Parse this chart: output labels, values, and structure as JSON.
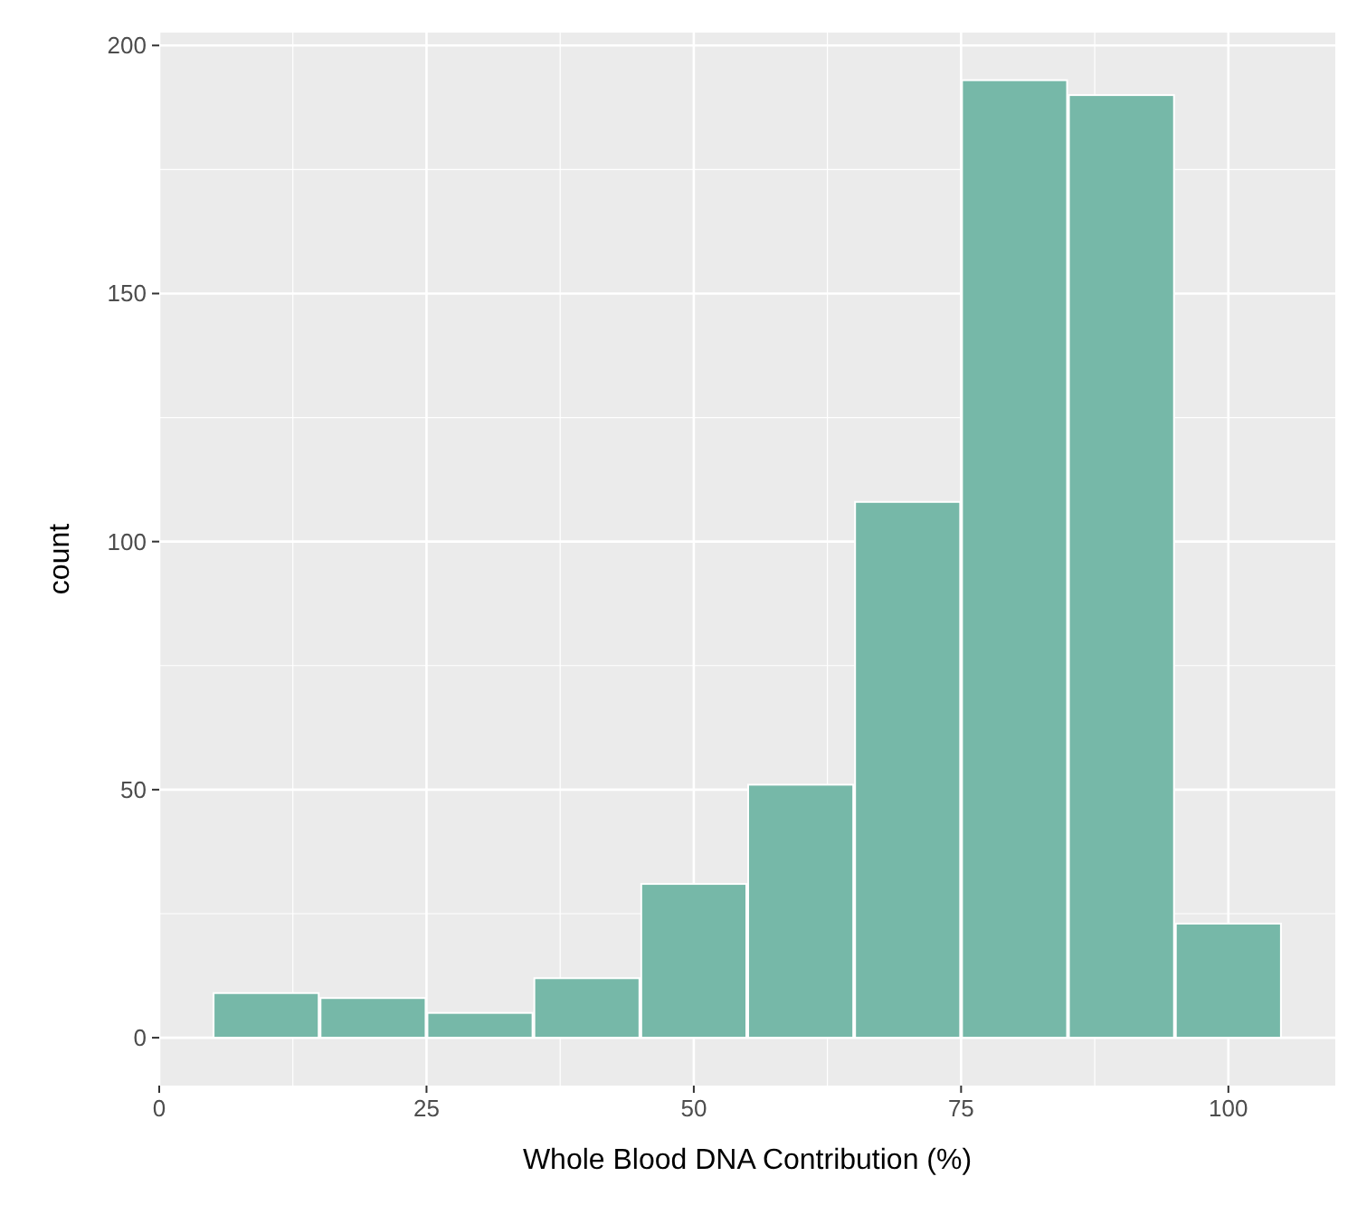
{
  "chart_data": {
    "type": "histogram",
    "xlabel": "Whole Blood DNA Contribution (%)",
    "ylabel": "count",
    "bins": [
      5,
      15,
      25,
      35,
      45,
      55,
      65,
      75,
      85,
      95,
      105
    ],
    "values": [
      9,
      8,
      5,
      12,
      31,
      51,
      108,
      193,
      190,
      23
    ],
    "color": "#76b8a8",
    "xlim": [
      0,
      110
    ],
    "xticks": [
      0,
      25,
      50,
      75,
      100
    ],
    "ylim": [
      -9.65,
      202.6
    ],
    "yticks": [
      0,
      50,
      100,
      150,
      200
    ],
    "grid": true
  }
}
